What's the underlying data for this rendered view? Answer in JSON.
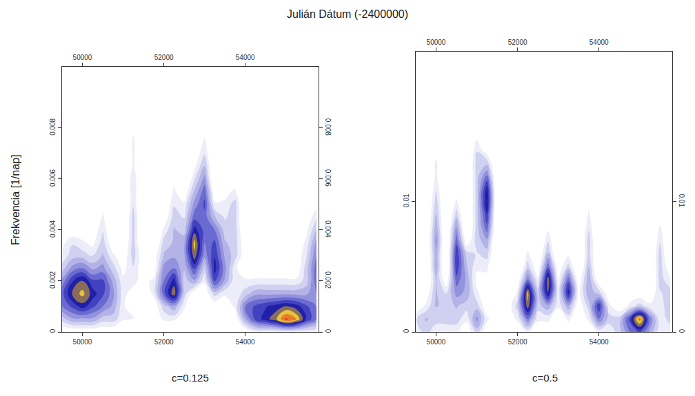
{
  "xlabel": "Julián Dátum (-2400000)",
  "ylabel": "Frekvencia [1/nap]",
  "chart_data": [
    {
      "type": "contour",
      "title": "c=0.125",
      "xlim": [
        49500,
        55800
      ],
      "xticks": [
        50000,
        52000,
        54000
      ],
      "ylim": [
        0,
        0.0104
      ],
      "yticks": [
        0,
        0.002,
        0.004,
        0.006,
        0.008
      ],
      "zlim": [
        0,
        1
      ],
      "x": [
        49500,
        49750,
        50000,
        50250,
        50500,
        50750,
        51000,
        51250,
        51500,
        51750,
        52000,
        52250,
        52500,
        52750,
        53000,
        53250,
        53500,
        53750,
        54000,
        54250,
        54500,
        54750,
        55000,
        55250,
        55500,
        55750
      ],
      "y": [
        0,
        0.0005,
        0.001,
        0.0015,
        0.002,
        0.0025,
        0.003,
        0.0035,
        0.004,
        0.0045,
        0.005,
        0.0055,
        0.006,
        0.0065,
        0.007,
        0.0075,
        0.008,
        0.0085,
        0.009,
        0.0095
      ],
      "z": [
        [
          0.1,
          0.1,
          0.1,
          0.1,
          0.1,
          0.1,
          0,
          0,
          0,
          0,
          0,
          0,
          0,
          0,
          0,
          0,
          0,
          0,
          0.1,
          0.2,
          0.2,
          0.2,
          0.2,
          0.2,
          0.2,
          0.2
        ],
        [
          0.3,
          0.4,
          0.4,
          0.4,
          0.3,
          0.3,
          0.2,
          0.2,
          0,
          0.1,
          0.2,
          0.2,
          0.1,
          0,
          0,
          0,
          0,
          0.1,
          0.4,
          0.6,
          0.7,
          0.8,
          1,
          0.9,
          0.65,
          0.5
        ],
        [
          0.5,
          0.6,
          0.7,
          0.6,
          0.5,
          0.4,
          0.2,
          0.1,
          0,
          0.1,
          0.3,
          0.4,
          0.2,
          0,
          0,
          0.1,
          0.1,
          0.2,
          0.5,
          0.6,
          0.65,
          0.7,
          0.75,
          0.7,
          0.6,
          0.5
        ],
        [
          0.55,
          0.75,
          0.85,
          0.7,
          0.6,
          0.45,
          0.2,
          0.15,
          0.1,
          0.2,
          0.55,
          0.8,
          0.3,
          0.1,
          0.1,
          0.3,
          0.2,
          0.2,
          0.3,
          0.4,
          0.4,
          0.4,
          0.4,
          0.4,
          0.4,
          0.5
        ],
        [
          0.45,
          0.65,
          0.75,
          0.6,
          0.6,
          0.4,
          0.2,
          0.2,
          0.15,
          0.2,
          0.5,
          0.7,
          0.3,
          0.4,
          0.2,
          0.6,
          0.4,
          0.2,
          0.2,
          0.2,
          0.2,
          0.2,
          0.2,
          0.2,
          0.3,
          0.55
        ],
        [
          0.3,
          0.45,
          0.5,
          0.4,
          0.45,
          0.3,
          0.15,
          0.25,
          0.1,
          0.1,
          0.45,
          0.5,
          0.35,
          0.6,
          0.3,
          0.7,
          0.45,
          0.2,
          0.1,
          0.1,
          0.1,
          0.1,
          0.1,
          0.1,
          0.3,
          0.55
        ],
        [
          0.2,
          0.3,
          0.3,
          0.25,
          0.35,
          0.2,
          0.1,
          0.3,
          0.1,
          0.1,
          0.35,
          0.4,
          0.4,
          0.8,
          0.45,
          0.65,
          0.4,
          0.3,
          0.1,
          0,
          0,
          0,
          0,
          0.1,
          0.25,
          0.5
        ],
        [
          0.15,
          0.25,
          0.2,
          0.15,
          0.3,
          0.1,
          0.05,
          0.3,
          0,
          0,
          0.3,
          0.35,
          0.4,
          0.85,
          0.5,
          0.6,
          0.35,
          0.3,
          0.1,
          0,
          0,
          0,
          0,
          0.1,
          0.2,
          0.45
        ],
        [
          0.1,
          0.1,
          0.1,
          0.1,
          0.25,
          0.05,
          0,
          0.3,
          0,
          0,
          0.2,
          0.35,
          0.3,
          0.7,
          0.55,
          0.5,
          0.3,
          0.3,
          0.05,
          0,
          0,
          0,
          0,
          0.05,
          0.15,
          0.35
        ],
        [
          0,
          0,
          0,
          0,
          0.2,
          0,
          0,
          0.3,
          0,
          0,
          0.1,
          0.3,
          0.25,
          0.55,
          0.55,
          0.35,
          0.25,
          0.3,
          0,
          0,
          0,
          0,
          0,
          0,
          0.1,
          0.25
        ],
        [
          0,
          0,
          0,
          0,
          0.15,
          0,
          0,
          0.25,
          0,
          0,
          0.05,
          0.25,
          0.2,
          0.45,
          0.6,
          0.2,
          0.2,
          0.3,
          0,
          0,
          0,
          0,
          0,
          0,
          0.05,
          0.15
        ],
        [
          0,
          0,
          0,
          0,
          0.1,
          0,
          0,
          0.25,
          0,
          0,
          0,
          0.2,
          0.1,
          0.35,
          0.55,
          0.1,
          0.15,
          0.2,
          0,
          0,
          0,
          0,
          0,
          0,
          0,
          0
        ],
        [
          0,
          0,
          0,
          0,
          0,
          0,
          0,
          0.25,
          0,
          0,
          0,
          0.15,
          0,
          0.25,
          0.45,
          0,
          0.1,
          0.1,
          0,
          0,
          0,
          0,
          0,
          0,
          0,
          0
        ],
        [
          0,
          0,
          0,
          0,
          0,
          0,
          0,
          0.2,
          0,
          0,
          0,
          0.05,
          0,
          0.15,
          0.35,
          0,
          0.05,
          0,
          0,
          0,
          0,
          0,
          0,
          0,
          0,
          0
        ],
        [
          0,
          0,
          0,
          0,
          0,
          0,
          0,
          0.2,
          0,
          0,
          0,
          0,
          0,
          0.1,
          0.25,
          0,
          0,
          0,
          0,
          0,
          0,
          0,
          0,
          0,
          0,
          0
        ],
        [
          0,
          0,
          0,
          0,
          0,
          0,
          0,
          0.2,
          0,
          0,
          0,
          0,
          0,
          0,
          0.2,
          0,
          0,
          0,
          0,
          0,
          0,
          0,
          0,
          0,
          0,
          0
        ],
        [
          0,
          0,
          0,
          0,
          0,
          0,
          0,
          0.15,
          0,
          0,
          0,
          0,
          0,
          0,
          0.1,
          0,
          0,
          0,
          0,
          0,
          0,
          0,
          0,
          0,
          0,
          0
        ],
        [
          0,
          0,
          0,
          0,
          0,
          0,
          0,
          0.15,
          0,
          0,
          0,
          0,
          0,
          0,
          0,
          0,
          0,
          0,
          0,
          0,
          0,
          0,
          0,
          0,
          0,
          0
        ],
        [
          0,
          0,
          0,
          0,
          0,
          0,
          0,
          0.1,
          0,
          0,
          0,
          0,
          0,
          0,
          0,
          0,
          0,
          0,
          0,
          0,
          0,
          0,
          0,
          0,
          0,
          0
        ],
        [
          0,
          0,
          0,
          0,
          0,
          0,
          0,
          0.1,
          0,
          0,
          0,
          0,
          0,
          0,
          0,
          0,
          0,
          0,
          0,
          0,
          0,
          0,
          0,
          0,
          0,
          0
        ]
      ]
    },
    {
      "type": "contour",
      "title": "c=0.5",
      "xlim": [
        49500,
        55800
      ],
      "xticks": [
        50000,
        52000,
        54000
      ],
      "ylim": [
        0,
        0.0215
      ],
      "yticks": [
        0,
        0.01
      ],
      "zlim": [
        0,
        1
      ],
      "x": [
        49500,
        49750,
        50000,
        50250,
        50500,
        50750,
        51000,
        51250,
        51500,
        51750,
        52000,
        52250,
        52500,
        52750,
        53000,
        53250,
        53500,
        53750,
        54000,
        54250,
        54500,
        54750,
        55000,
        55250,
        55500,
        55750
      ],
      "y": [
        0,
        0.001,
        0.002,
        0.003,
        0.004,
        0.005,
        0.006,
        0.007,
        0.008,
        0.009,
        0.01,
        0.011,
        0.012,
        0.013,
        0.014,
        0.015,
        0.016,
        0.017,
        0.018,
        0.019
      ],
      "z": [
        [
          0.2,
          0.3,
          0.2,
          0.2,
          0.2,
          0.1,
          0.3,
          0.1,
          0.1,
          0.1,
          0.1,
          0.2,
          0.1,
          0.1,
          0.1,
          0.1,
          0.1,
          0.1,
          0.2,
          0.2,
          0.3,
          0.5,
          0.6,
          0.4,
          0.2,
          0.2
        ],
        [
          0.25,
          0.35,
          0.3,
          0.3,
          0.3,
          0.2,
          0.45,
          0.2,
          0.1,
          0.1,
          0.2,
          0.5,
          0.2,
          0.2,
          0.1,
          0.2,
          0.1,
          0.2,
          0.5,
          0.3,
          0.3,
          0.6,
          0.95,
          0.5,
          0.2,
          0.3
        ],
        [
          0.1,
          0.2,
          0.35,
          0.3,
          0.35,
          0.3,
          0.3,
          0.1,
          0.1,
          0.1,
          0.3,
          0.8,
          0.3,
          0.4,
          0.2,
          0.4,
          0.1,
          0.3,
          0.65,
          0.2,
          0.1,
          0.2,
          0.3,
          0.2,
          0.2,
          0.35
        ],
        [
          0,
          0.1,
          0.35,
          0.25,
          0.45,
          0.4,
          0.2,
          0.1,
          0,
          0,
          0.2,
          0.85,
          0.3,
          0.75,
          0.2,
          0.7,
          0.15,
          0.4,
          0.3,
          0.1,
          0,
          0.1,
          0.1,
          0.1,
          0.25,
          0.3
        ],
        [
          0,
          0,
          0.35,
          0.1,
          0.55,
          0.4,
          0.15,
          0.15,
          0,
          0,
          0.1,
          0.5,
          0.2,
          0.8,
          0.15,
          0.55,
          0.1,
          0.4,
          0.1,
          0,
          0,
          0,
          0,
          0,
          0.3,
          0.2
        ],
        [
          0,
          0,
          0.4,
          0,
          0.65,
          0.35,
          0.2,
          0.2,
          0,
          0,
          0,
          0.3,
          0.1,
          0.55,
          0.1,
          0.3,
          0,
          0.35,
          0,
          0,
          0,
          0,
          0,
          0,
          0.3,
          0.1
        ],
        [
          0,
          0,
          0.4,
          0,
          0.65,
          0.3,
          0.25,
          0.3,
          0,
          0,
          0,
          0.2,
          0.05,
          0.35,
          0,
          0.15,
          0,
          0.3,
          0,
          0,
          0,
          0,
          0,
          0,
          0.3,
          0
        ],
        [
          0,
          0,
          0.45,
          0,
          0.55,
          0.1,
          0.3,
          0.4,
          0,
          0,
          0,
          0.1,
          0,
          0.25,
          0,
          0.05,
          0,
          0.3,
          0,
          0,
          0,
          0,
          0,
          0,
          0.25,
          0
        ],
        [
          0,
          0,
          0.4,
          0,
          0.45,
          0,
          0.3,
          0.55,
          0,
          0,
          0,
          0,
          0,
          0.15,
          0,
          0,
          0,
          0.25,
          0,
          0,
          0,
          0,
          0,
          0,
          0.2,
          0
        ],
        [
          0,
          0,
          0.35,
          0,
          0.3,
          0,
          0.3,
          0.65,
          0,
          0,
          0,
          0,
          0,
          0,
          0,
          0,
          0,
          0.2,
          0,
          0,
          0,
          0,
          0,
          0,
          0.1,
          0
        ],
        [
          0,
          0,
          0.3,
          0,
          0.2,
          0,
          0.3,
          0.75,
          0,
          0,
          0,
          0,
          0,
          0,
          0,
          0,
          0,
          0.15,
          0,
          0,
          0,
          0,
          0,
          0,
          0,
          0
        ],
        [
          0,
          0,
          0.25,
          0,
          0.1,
          0,
          0.3,
          0.7,
          0,
          0,
          0,
          0,
          0,
          0,
          0,
          0,
          0,
          0.05,
          0,
          0,
          0,
          0,
          0,
          0,
          0,
          0
        ],
        [
          0,
          0,
          0.2,
          0,
          0,
          0,
          0.3,
          0.5,
          0,
          0,
          0,
          0,
          0,
          0,
          0,
          0,
          0,
          0,
          0,
          0,
          0,
          0,
          0,
          0,
          0,
          0
        ],
        [
          0,
          0,
          0.2,
          0,
          0,
          0,
          0.3,
          0.3,
          0,
          0,
          0,
          0,
          0,
          0,
          0,
          0,
          0,
          0,
          0,
          0,
          0,
          0,
          0,
          0,
          0,
          0
        ],
        [
          0,
          0,
          0.1,
          0,
          0,
          0,
          0.25,
          0.1,
          0,
          0,
          0,
          0,
          0,
          0,
          0,
          0,
          0,
          0,
          0,
          0,
          0,
          0,
          0,
          0,
          0,
          0
        ],
        [
          0,
          0,
          0,
          0,
          0,
          0,
          0.15,
          0,
          0,
          0,
          0,
          0,
          0,
          0,
          0,
          0,
          0,
          0,
          0,
          0,
          0,
          0,
          0,
          0,
          0,
          0
        ],
        [
          0,
          0,
          0,
          0,
          0,
          0,
          0,
          0,
          0,
          0,
          0,
          0,
          0,
          0,
          0,
          0,
          0,
          0,
          0,
          0,
          0,
          0,
          0,
          0,
          0,
          0
        ],
        [
          0,
          0,
          0,
          0,
          0,
          0,
          0,
          0,
          0,
          0,
          0,
          0,
          0,
          0,
          0,
          0,
          0,
          0,
          0,
          0,
          0,
          0,
          0,
          0,
          0,
          0
        ],
        [
          0,
          0,
          0,
          0,
          0,
          0,
          0,
          0,
          0,
          0,
          0,
          0,
          0,
          0,
          0,
          0,
          0,
          0,
          0,
          0,
          0,
          0,
          0,
          0,
          0,
          0
        ],
        [
          0,
          0,
          0,
          0,
          0,
          0,
          0,
          0,
          0,
          0,
          0,
          0,
          0,
          0,
          0,
          0,
          0,
          0,
          0,
          0,
          0,
          0,
          0,
          0,
          0,
          0
        ]
      ]
    }
  ]
}
